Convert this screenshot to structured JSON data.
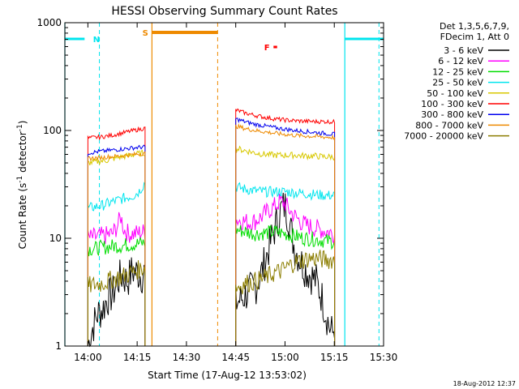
{
  "chart_data": {
    "type": "line",
    "title": "HESSI Observing Summary Count Rates",
    "xlabel": "Start Time (17-Aug-12 13:53:02)",
    "ylabel": "Count Rate (s",
    "ylabel_sup1": "-1",
    "ylabel_mid": " detector",
    "ylabel_sup2": "-1",
    "ylabel_end": ")",
    "x_unit": "minutes since 13:53:02",
    "xlim": [
      0,
      97
    ],
    "ylim": [
      1,
      1000
    ],
    "yscale": "log",
    "x_ticks": [
      {
        "value": 7,
        "label": "14:00"
      },
      {
        "value": 22,
        "label": "14:15"
      },
      {
        "value": 37,
        "label": "14:30"
      },
      {
        "value": 52,
        "label": "14:45"
      },
      {
        "value": 67,
        "label": "15:00"
      },
      {
        "value": 82,
        "label": "15:15"
      },
      {
        "value": 97,
        "label": "15:30"
      }
    ],
    "y_ticks": [
      {
        "value": 1,
        "label": "1"
      },
      {
        "value": 10,
        "label": "10"
      },
      {
        "value": 100,
        "label": "100"
      },
      {
        "value": 1000,
        "label": "1000"
      }
    ],
    "legend": {
      "placement": "right",
      "header_line1": "Det 1,3,5,6,7,9,",
      "header_line2": "FDecim 1, Att 0"
    },
    "gaps": [
      [
        24.4,
        52.0
      ],
      [
        82.1,
        97
      ]
    ],
    "series": [
      {
        "name": "3 - 6 keV",
        "color": "#000000",
        "segments": [
          {
            "x": [
              7.0,
              8.5,
              10.0,
              11.5,
              13.0,
              14.5,
              16.0,
              17.5,
              19.0,
              20.5,
              22.0,
              23.5,
              24.4
            ],
            "y": [
              1.0,
              1.5,
              2.0,
              2.2,
              2.8,
              3.0,
              4.0,
              4.5,
              4.0,
              5.0,
              4.8,
              4.5,
              5.0
            ]
          },
          {
            "x": [
              52.0,
              54.0,
              56.0,
              58.0,
              60.0,
              61.5,
              63.0,
              64.5,
              66.0,
              67.0,
              68.0,
              69.0,
              70.0,
              71.0,
              72.0,
              73.5,
              75.0,
              76.5,
              78.0,
              79.5,
              80.5,
              81.5,
              82.1
            ],
            "y": [
              2.5,
              2.8,
              3.2,
              3.5,
              5.0,
              7.0,
              10.0,
              14.0,
              19.0,
              20.0,
              16.0,
              11.0,
              8.0,
              7.0,
              6.0,
              5.0,
              4.5,
              4.0,
              3.0,
              2.0,
              1.5,
              1.3,
              1.6
            ]
          }
        ]
      },
      {
        "name": "6 - 12 keV",
        "color": "#ff00ff",
        "segments": [
          {
            "x": [
              7.0,
              8.5,
              10.0,
              11.5,
              13.0,
              14.5,
              16.0,
              17.0,
              18.0,
              19.5,
              21.0,
              22.5,
              24.4
            ],
            "y": [
              10.0,
              10.2,
              10.3,
              10.5,
              10.7,
              11.0,
              13.0,
              16.0,
              12.0,
              11.0,
              11.0,
              11.2,
              11.5
            ]
          },
          {
            "x": [
              52.0,
              54.0,
              56.0,
              58.0,
              60.0,
              62.0,
              64.0,
              65.5,
              67.0,
              68.5,
              70.0,
              72.0,
              74.0,
              76.0,
              78.0,
              80.0,
              82.1
            ],
            "y": [
              15.0,
              14.5,
              14.0,
              14.5,
              16.0,
              18.0,
              20.0,
              22.0,
              21.0,
              18.0,
              16.0,
              14.0,
              13.0,
              12.5,
              12.0,
              11.5,
              11.0
            ]
          }
        ]
      },
      {
        "name": "12 - 25 keV",
        "color": "#00dd00",
        "segments": [
          {
            "x": [
              7.0,
              9.0,
              11.0,
              13.0,
              15.0,
              17.0,
              19.0,
              21.0,
              23.0,
              24.4
            ],
            "y": [
              8.0,
              8.0,
              8.2,
              8.3,
              8.5,
              8.5,
              8.7,
              8.8,
              9.0,
              9.0
            ]
          },
          {
            "x": [
              52.0,
              55.0,
              58.0,
              61.0,
              64.0,
              67.0,
              70.0,
              73.0,
              76.0,
              79.0,
              82.1
            ],
            "y": [
              12.0,
              11.5,
              11.0,
              11.2,
              11.5,
              11.0,
              10.5,
              10.0,
              9.8,
              9.5,
              9.3
            ]
          }
        ]
      },
      {
        "name": "25 - 50 keV",
        "color": "#00e5ee",
        "segments": [
          {
            "x": [
              7.0,
              9.0,
              11.0,
              13.0,
              15.0,
              17.0,
              19.0,
              21.0,
              22.5,
              23.5,
              24.4
            ],
            "y": [
              19.0,
              19.5,
              20.0,
              21.0,
              22.0,
              23.0,
              24.0,
              25.0,
              27.0,
              30.0,
              33.0
            ]
          },
          {
            "x": [
              52.0,
              55.0,
              58.0,
              61.0,
              64.0,
              67.0,
              70.0,
              73.0,
              76.0,
              79.0,
              82.1
            ],
            "y": [
              30.0,
              28.5,
              27.5,
              27.0,
              27.0,
              27.0,
              26.5,
              26.0,
              25.5,
              25.0,
              25.0
            ]
          }
        ]
      },
      {
        "name": "50 - 100 keV",
        "color": "#d8c800",
        "segments": [
          {
            "x": [
              7.0,
              9.0,
              11.0,
              13.0,
              15.0,
              17.0,
              19.0,
              21.0,
              23.0,
              24.4
            ],
            "y": [
              50.0,
              51.0,
              52.0,
              53.0,
              55.0,
              57.0,
              58.0,
              60.0,
              61.0,
              62.0
            ]
          },
          {
            "x": [
              52.0,
              55.0,
              58.0,
              61.0,
              64.0,
              67.0,
              70.0,
              73.0,
              76.0,
              79.0,
              82.1
            ],
            "y": [
              68.0,
              65.0,
              62.0,
              60.0,
              59.0,
              59.0,
              59.0,
              58.0,
              58.0,
              57.0,
              57.0
            ]
          }
        ]
      },
      {
        "name": "100 - 300 keV",
        "color": "#ff0000",
        "segments": [
          {
            "x": [
              7.0,
              9.0,
              11.0,
              13.0,
              15.0,
              17.0,
              19.0,
              21.0,
              23.0,
              24.4
            ],
            "y": [
              85.0,
              86.0,
              87.0,
              89.0,
              91.0,
              94.0,
              97.0,
              100.0,
              103.0,
              105.0
            ]
          },
          {
            "x": [
              52.0,
              53.5,
              55.0,
              58.0,
              61.0,
              64.0,
              67.0,
              70.0,
              73.0,
              76.0,
              79.0,
              82.1
            ],
            "y": [
              155.0,
              150.0,
              145.0,
              138.0,
              132.0,
              128.0,
              125.0,
              123.0,
              122.0,
              121.0,
              121.0,
              120.0
            ]
          }
        ]
      },
      {
        "name": "300 - 800 keV",
        "color": "#0000ee",
        "segments": [
          {
            "x": [
              7.0,
              9.0,
              11.0,
              13.0,
              15.0,
              17.0,
              19.0,
              21.0,
              23.0,
              24.4
            ],
            "y": [
              62.0,
              63.0,
              64.0,
              65.0,
              66.0,
              67.0,
              68.0,
              69.0,
              70.0,
              70.0
            ]
          },
          {
            "x": [
              52.0,
              55.0,
              58.0,
              61.0,
              64.0,
              67.0,
              70.0,
              73.0,
              76.0,
              79.0,
              82.1
            ],
            "y": [
              128.0,
              120.0,
              114.0,
              110.0,
              106.0,
              103.0,
              100.0,
              98.0,
              96.0,
              94.0,
              92.0
            ]
          }
        ]
      },
      {
        "name": "800 - 7000 keV",
        "color": "#ee8a00",
        "segments": [
          {
            "x": [
              7.0,
              9.0,
              11.0,
              13.0,
              15.0,
              17.0,
              19.0,
              21.0,
              23.0,
              24.4
            ],
            "y": [
              55.0,
              55.5,
              56.0,
              57.0,
              57.5,
              58.0,
              59.0,
              60.0,
              61.0,
              61.0
            ]
          },
          {
            "x": [
              52.0,
              55.0,
              58.0,
              61.0,
              64.0,
              67.0,
              70.0,
              73.0,
              76.0,
              79.0,
              82.1
            ],
            "y": [
              110.0,
              104.0,
              100.0,
              97.0,
              94.0,
              92.0,
              90.0,
              89.0,
              88.0,
              87.0,
              86.0
            ]
          }
        ]
      },
      {
        "name": "7000 - 20000 keV",
        "color": "#8b7d00",
        "segments": [
          {
            "x": [
              7.0,
              9.0,
              11.0,
              13.0,
              15.0,
              17.0,
              19.0,
              21.0,
              23.0,
              24.4
            ],
            "y": [
              3.6,
              3.7,
              3.8,
              4.0,
              4.2,
              4.4,
              4.6,
              4.9,
              5.2,
              5.5
            ]
          },
          {
            "x": [
              52.0,
              55.0,
              58.0,
              61.0,
              64.0,
              66.0,
              68.0,
              70.0,
              72.0,
              74.0,
              76.0,
              78.0,
              80.0,
              82.1
            ],
            "y": [
              3.5,
              3.8,
              4.0,
              4.3,
              4.8,
              5.0,
              5.5,
              6.0,
              6.2,
              6.5,
              6.5,
              6.4,
              6.3,
              6.3
            ]
          }
        ]
      }
    ],
    "annotations": [
      {
        "label": "N",
        "color": "#00e5ee",
        "bar_start": 0,
        "bar_end": 6.0,
        "label_at": 9.6,
        "dashed_lines": [
          10.5
        ],
        "solid_lines": [
          0
        ]
      },
      {
        "label": "S",
        "color": "#ee8a00",
        "bar_start": 26.5,
        "bar_end": 46.5,
        "label_at": 24.5,
        "dashed_lines": [
          46.5
        ],
        "solid_lines": [
          26.5
        ]
      },
      {
        "label": "F",
        "color": "#ff0000",
        "bar_start": 63.5,
        "bar_end": 64.6,
        "label_at": 61.5,
        "dashed_lines": [],
        "solid_lines": []
      },
      {
        "label": "",
        "color": "#00e5ee",
        "bar_start": 85.2,
        "bar_end": 97,
        "label_at": 0,
        "dashed_lines": [
          95.6
        ],
        "solid_lines": [
          85.2
        ]
      }
    ]
  },
  "footer": {
    "timestamp": "18-Aug-2012 12:37"
  }
}
